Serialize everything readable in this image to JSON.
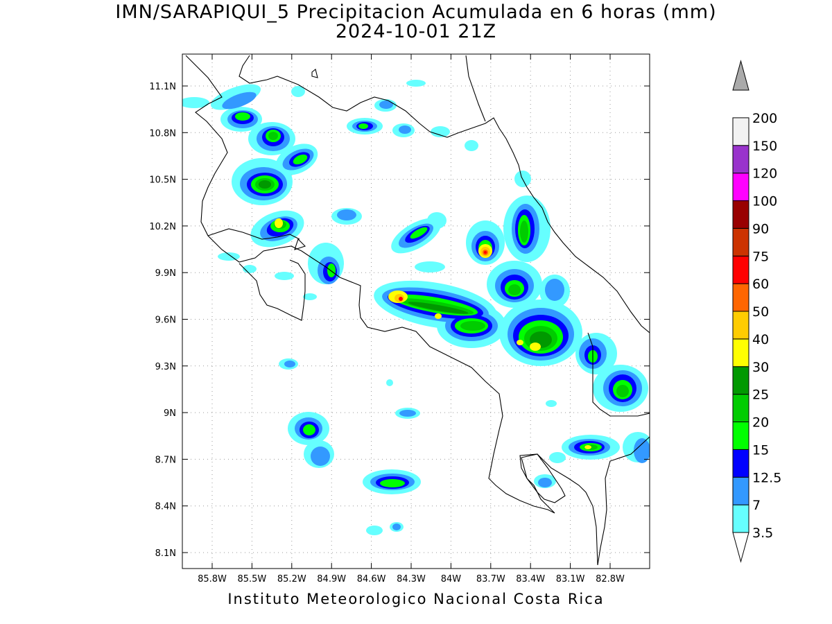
{
  "title": "IMN/SARAPIQUI_5 Precipitacion Acumulada en 6 horas (mm)",
  "subtitle": "2024-10-01 21Z",
  "credit": "Instituto Meteorologico Nacional Costa Rica",
  "axes": {
    "lon_labels": [
      "85.8W",
      "85.5W",
      "85.2W",
      "84.9W",
      "84.6W",
      "84.3W",
      "84W",
      "83.7W",
      "83.4W",
      "83.1W",
      "82.8W"
    ],
    "lat_labels": [
      "11.1N",
      "10.8N",
      "10.5N",
      "10.2N",
      "9.9N",
      "9.6N",
      "9.3N",
      "9N",
      "8.7N",
      "8.4N",
      "8.1N"
    ],
    "grid": true
  },
  "colorbar": {
    "bins": [
      {
        "label": "3.5",
        "color": "#66ffff"
      },
      {
        "label": "7",
        "color": "#3399ff"
      },
      {
        "label": "12.5",
        "color": "#0000ff"
      },
      {
        "label": "15",
        "color": "#00ff00"
      },
      {
        "label": "20",
        "color": "#00cc00"
      },
      {
        "label": "25",
        "color": "#009900"
      },
      {
        "label": "30",
        "color": "#ffff00"
      },
      {
        "label": "40",
        "color": "#ffcc00"
      },
      {
        "label": "50",
        "color": "#ff6600"
      },
      {
        "label": "60",
        "color": "#ff0000"
      },
      {
        "label": "75",
        "color": "#cc3300"
      },
      {
        "label": "90",
        "color": "#990000"
      },
      {
        "label": "100",
        "color": "#ff00ff"
      },
      {
        "label": "120",
        "color": "#9933cc"
      },
      {
        "label": "150",
        "color": "#f2f2f2"
      },
      {
        "label": "200",
        "color": "#aaaaaa"
      }
    ]
  }
}
